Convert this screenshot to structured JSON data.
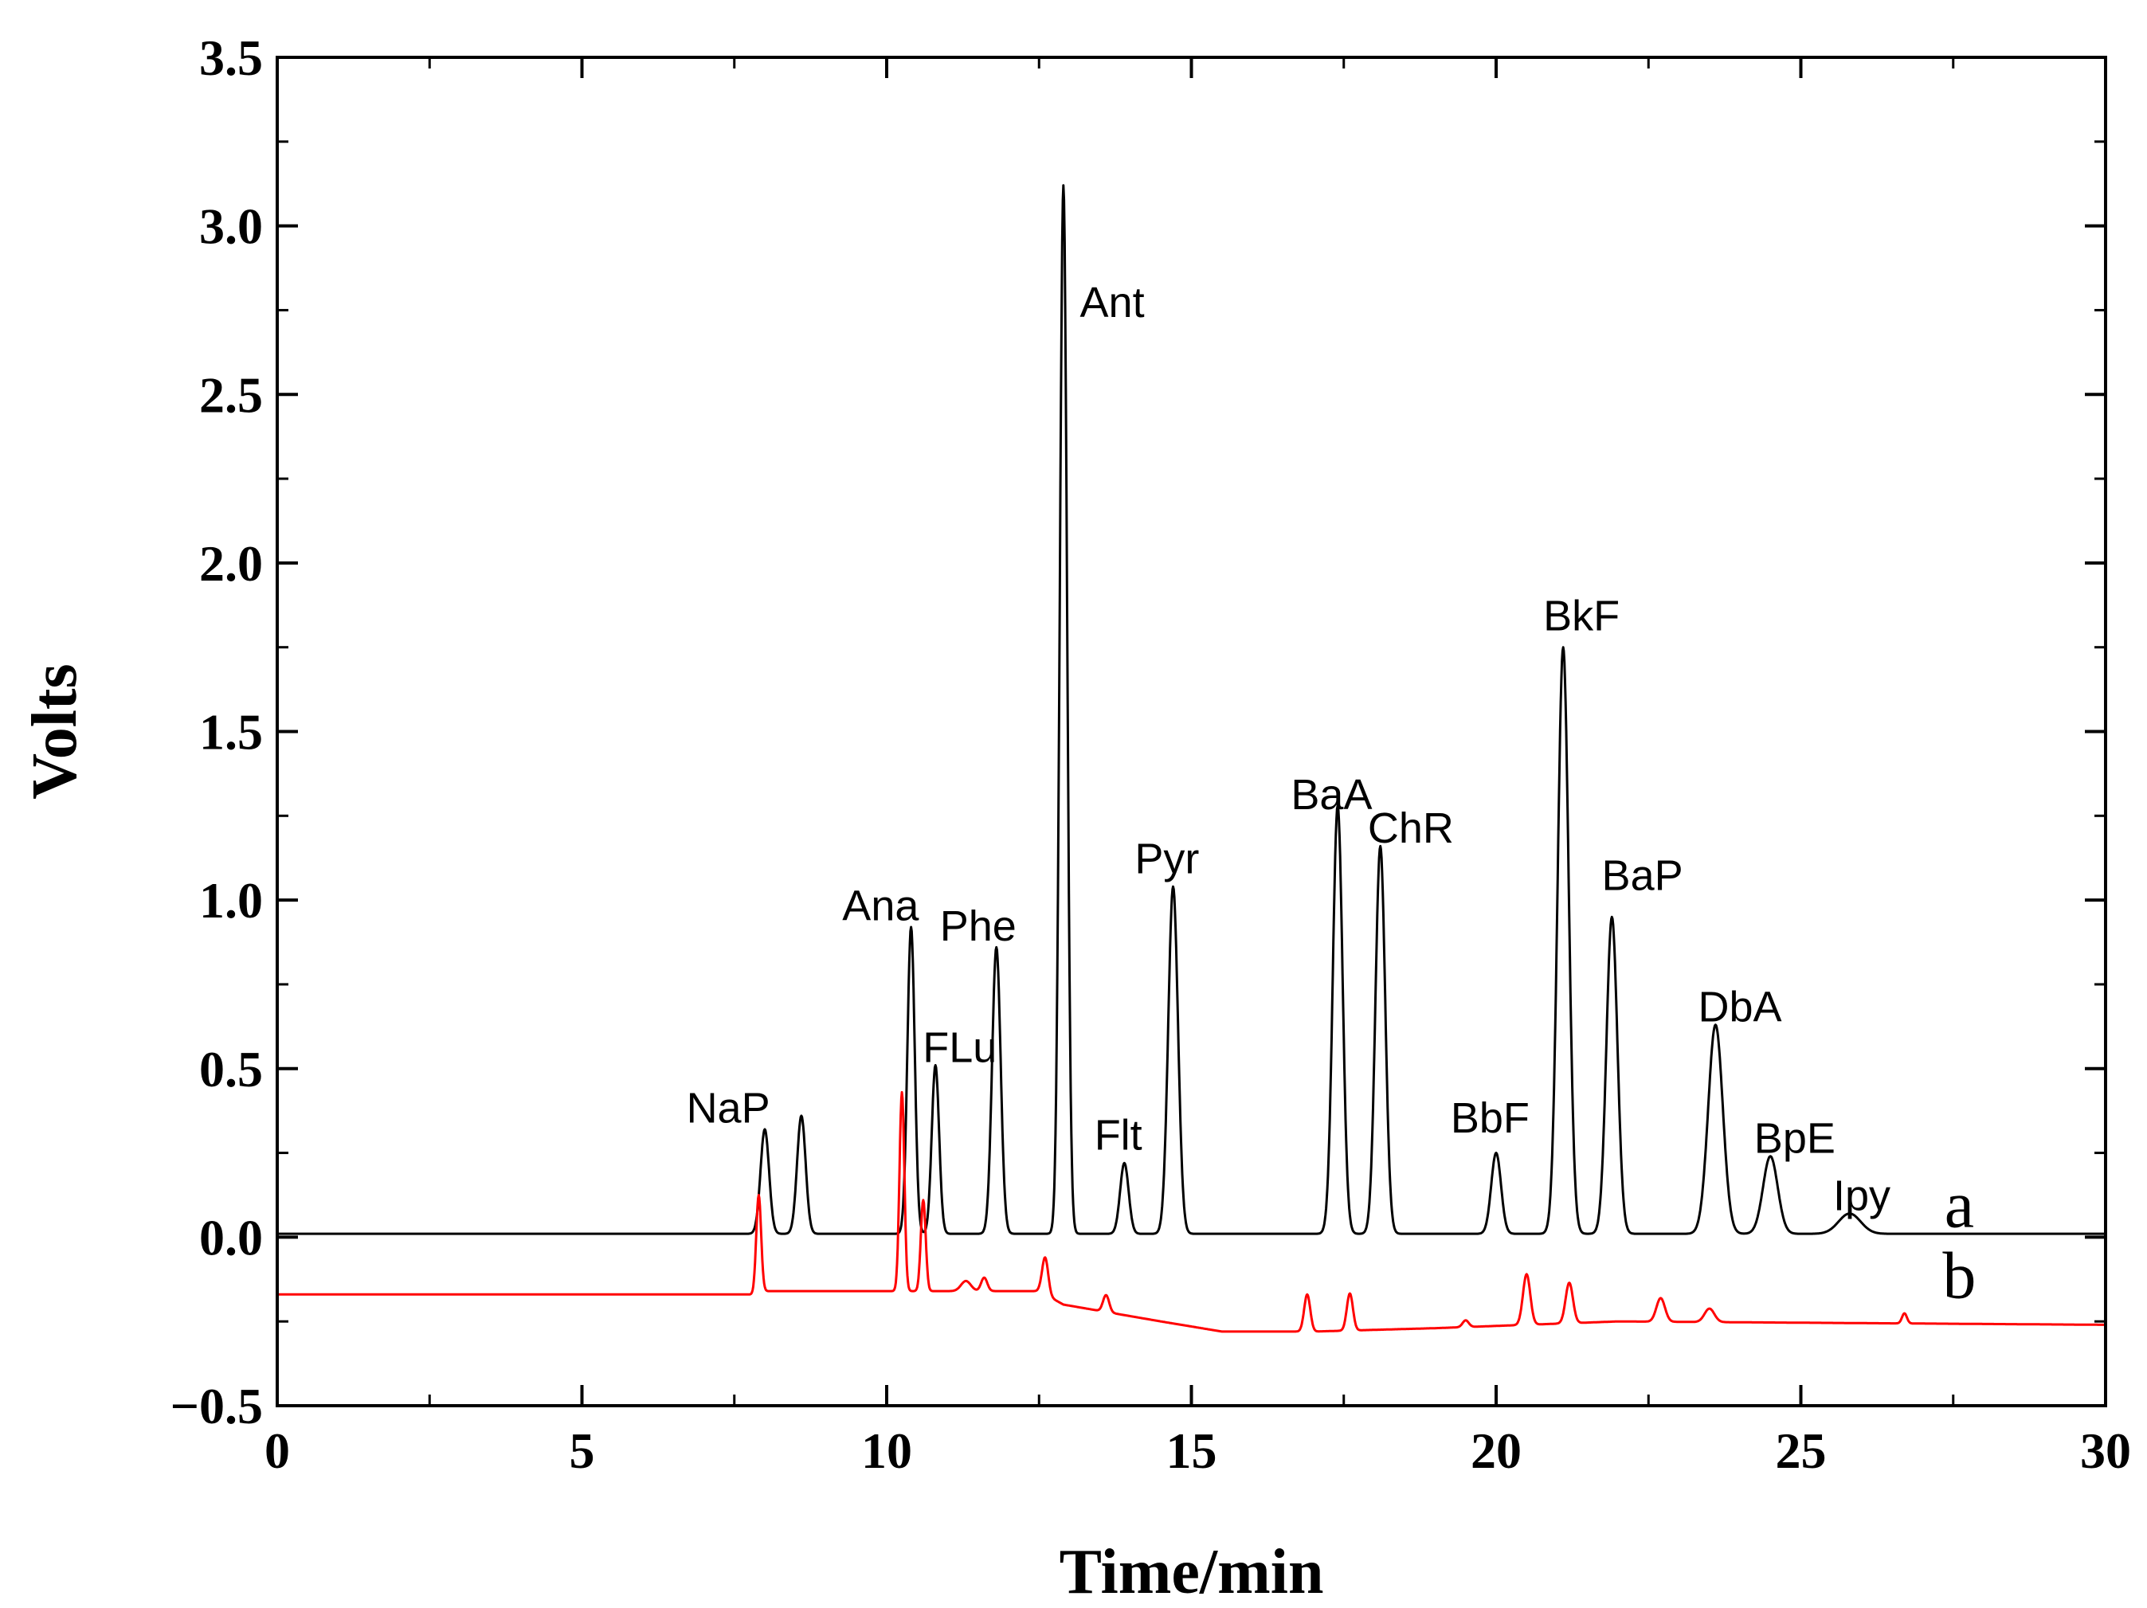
{
  "chart_data": {
    "type": "line",
    "title": "",
    "xlabel": "Time/min",
    "ylabel": "Volts",
    "xlim": [
      0,
      30
    ],
    "ylim": [
      -0.5,
      3.5
    ],
    "x_ticks": [
      0,
      5,
      10,
      15,
      20,
      25,
      30
    ],
    "x_tick_labels": [
      "0",
      "5",
      "10",
      "15",
      "20",
      "25",
      "30"
    ],
    "y_ticks": [
      -0.5,
      0.0,
      0.5,
      1.0,
      1.5,
      2.0,
      2.5,
      3.0,
      3.5
    ],
    "y_tick_labels": [
      "−0.5",
      "0.0",
      "0.5",
      "1.0",
      "1.5",
      "2.0",
      "2.5",
      "3.0",
      "3.5"
    ],
    "grid": false,
    "series": [
      {
        "name": "a",
        "color": "#000000",
        "baseline": 0.01,
        "peaks": [
          {
            "t": 8.0,
            "h": 0.31,
            "w": 0.07
          },
          {
            "t": 8.6,
            "h": 0.35,
            "w": 0.07
          },
          {
            "t": 10.4,
            "h": 0.91,
            "w": 0.06
          },
          {
            "t": 10.8,
            "h": 0.5,
            "w": 0.06
          },
          {
            "t": 11.8,
            "h": 0.85,
            "w": 0.07
          },
          {
            "t": 12.9,
            "h": 3.11,
            "w": 0.06
          },
          {
            "t": 13.9,
            "h": 0.21,
            "w": 0.07
          },
          {
            "t": 14.7,
            "h": 1.03,
            "w": 0.08
          },
          {
            "t": 17.4,
            "h": 1.27,
            "w": 0.08
          },
          {
            "t": 18.1,
            "h": 1.15,
            "w": 0.08
          },
          {
            "t": 20.0,
            "h": 0.24,
            "w": 0.08
          },
          {
            "t": 21.1,
            "h": 1.74,
            "w": 0.09
          },
          {
            "t": 21.9,
            "h": 0.94,
            "w": 0.09
          },
          {
            "t": 23.6,
            "h": 0.62,
            "w": 0.12
          },
          {
            "t": 24.5,
            "h": 0.23,
            "w": 0.12
          },
          {
            "t": 25.8,
            "h": 0.06,
            "w": 0.18
          }
        ]
      },
      {
        "name": "b",
        "color": "#ff0000",
        "baseline_points": [
          [
            0,
            -0.17
          ],
          [
            7.8,
            -0.17
          ],
          [
            8.0,
            -0.16
          ],
          [
            12.5,
            -0.16
          ],
          [
            12.9,
            -0.2
          ],
          [
            14.5,
            -0.25
          ],
          [
            15.5,
            -0.28
          ],
          [
            17.0,
            -0.28
          ],
          [
            19.0,
            -0.27
          ],
          [
            22.0,
            -0.25
          ],
          [
            30,
            -0.26
          ]
        ],
        "peaks": [
          {
            "t": 7.9,
            "h": 0.29,
            "w": 0.04
          },
          {
            "t": 10.25,
            "h": 0.59,
            "w": 0.04
          },
          {
            "t": 10.6,
            "h": 0.27,
            "w": 0.04
          },
          {
            "t": 11.3,
            "h": 0.03,
            "w": 0.08
          },
          {
            "t": 11.6,
            "h": 0.04,
            "w": 0.05
          },
          {
            "t": 12.6,
            "h": 0.11,
            "w": 0.05
          },
          {
            "t": 13.6,
            "h": 0.05,
            "w": 0.05
          },
          {
            "t": 16.9,
            "h": 0.11,
            "w": 0.05
          },
          {
            "t": 17.6,
            "h": 0.11,
            "w": 0.05
          },
          {
            "t": 19.5,
            "h": 0.02,
            "w": 0.05
          },
          {
            "t": 20.5,
            "h": 0.15,
            "w": 0.06
          },
          {
            "t": 21.2,
            "h": 0.12,
            "w": 0.06
          },
          {
            "t": 22.7,
            "h": 0.07,
            "w": 0.07
          },
          {
            "t": 23.5,
            "h": 0.04,
            "w": 0.08
          },
          {
            "t": 26.7,
            "h": 0.03,
            "w": 0.04
          }
        ]
      }
    ],
    "annotations": [
      {
        "text": "NaP",
        "x": 7.4,
        "y": 0.34
      },
      {
        "text": "Ana",
        "x": 9.9,
        "y": 0.94
      },
      {
        "text": "FLu",
        "x": 11.2,
        "y": 0.52
      },
      {
        "text": "Phe",
        "x": 11.5,
        "y": 0.88
      },
      {
        "text": "Ant",
        "x": 13.7,
        "y": 2.73
      },
      {
        "text": "Flt",
        "x": 13.8,
        "y": 0.26
      },
      {
        "text": "Pyr",
        "x": 14.6,
        "y": 1.08
      },
      {
        "text": "BaA",
        "x": 17.3,
        "y": 1.27
      },
      {
        "text": "ChR",
        "x": 18.6,
        "y": 1.17
      },
      {
        "text": "BbF",
        "x": 19.9,
        "y": 0.31
      },
      {
        "text": "BkF",
        "x": 21.4,
        "y": 1.8
      },
      {
        "text": "BaP",
        "x": 22.4,
        "y": 1.03
      },
      {
        "text": "DbA",
        "x": 24.0,
        "y": 0.64
      },
      {
        "text": "BpE",
        "x": 24.9,
        "y": 0.25
      },
      {
        "text": "Ipy",
        "x": 26.0,
        "y": 0.08
      }
    ],
    "trace_labels": [
      {
        "text": "a",
        "x": 27.6,
        "y": 0.03
      },
      {
        "text": "b",
        "x": 27.6,
        "y": -0.18
      }
    ]
  }
}
